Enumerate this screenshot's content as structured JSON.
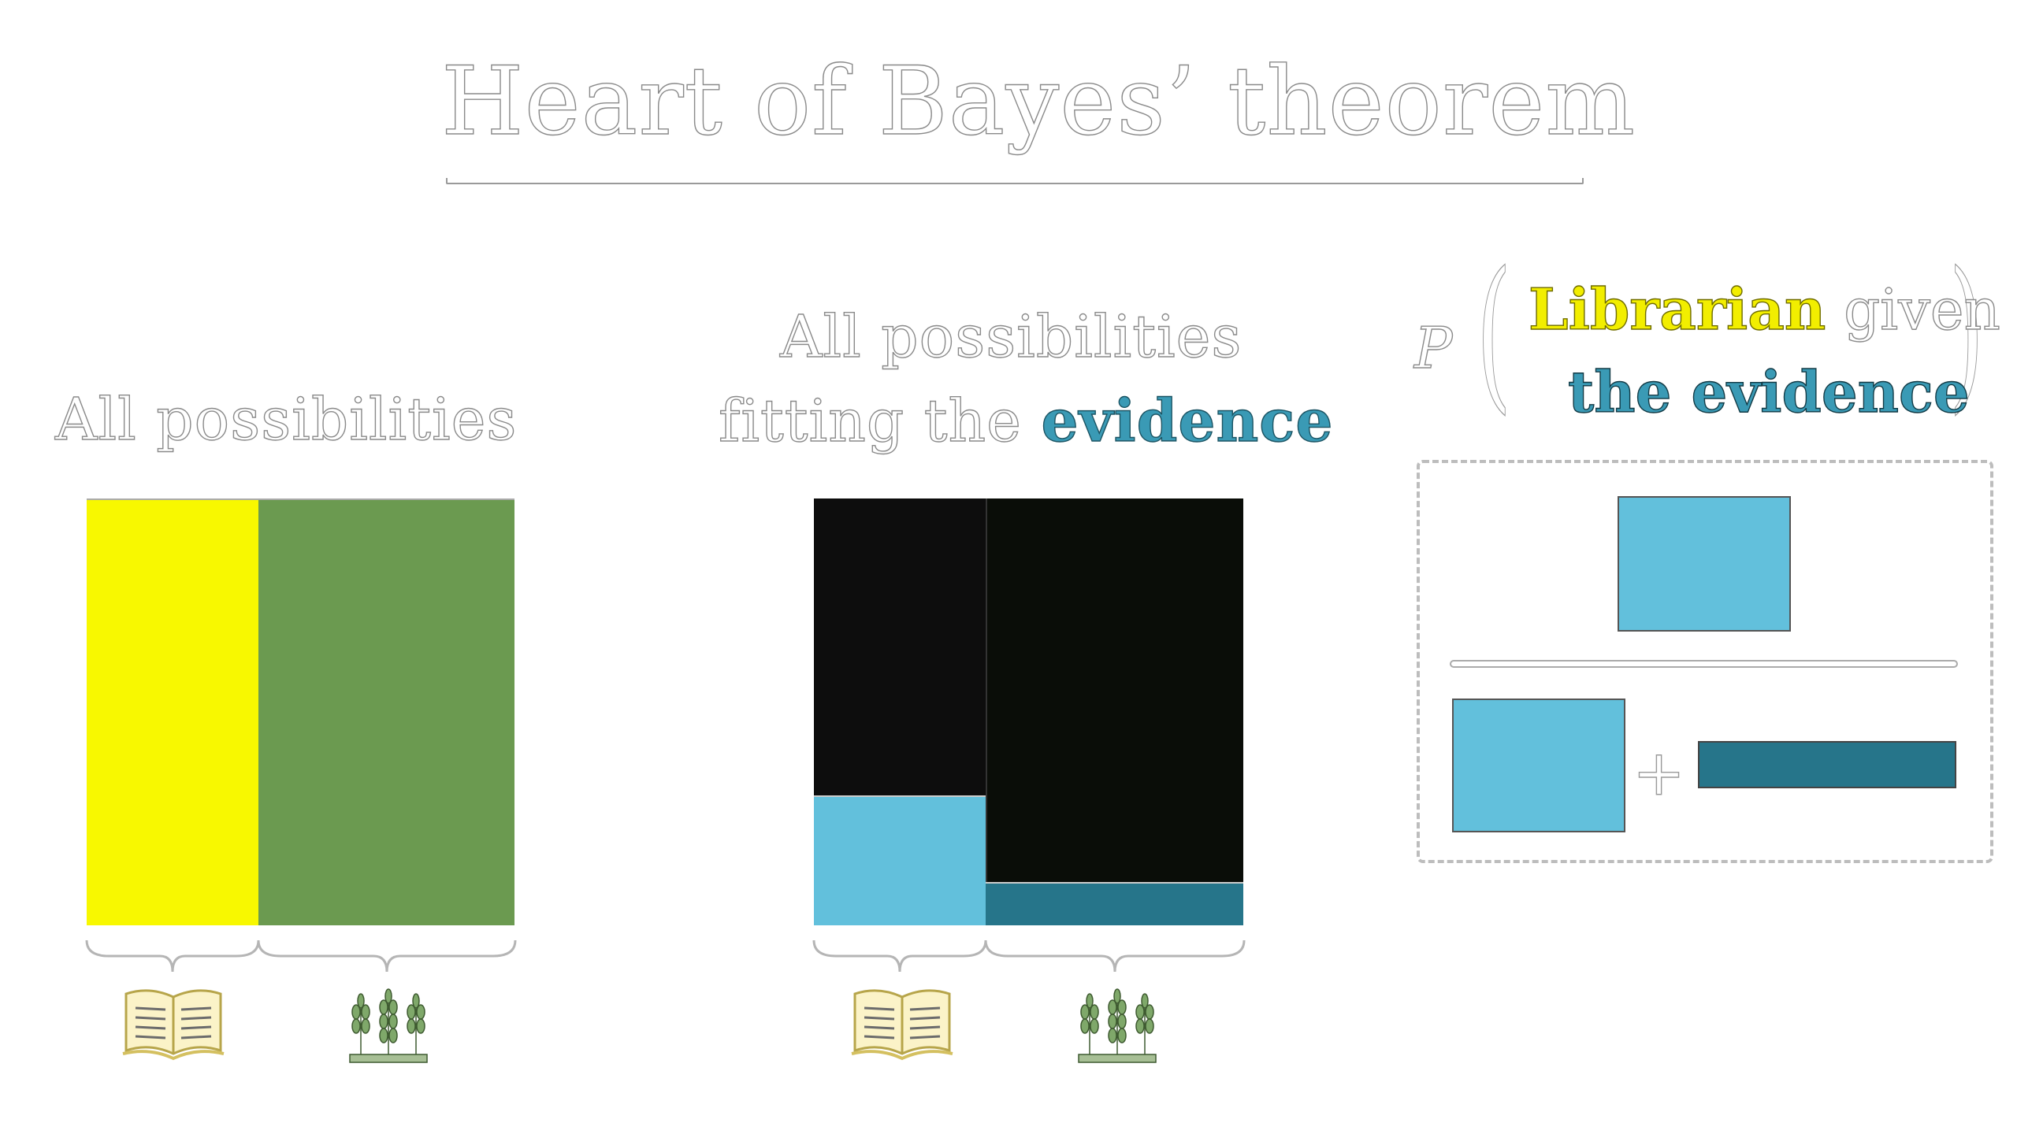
{
  "title": "Heart of Bayes’ theorem",
  "left_panel": {
    "heading": "All possibilities",
    "colors": {
      "librarian": "#f8f800",
      "farmer": "#6b9a50"
    }
  },
  "middle_panel": {
    "heading_line1": "All possibilities",
    "heading_line2_prefix": "fitting the ",
    "heading_line2_highlight": "evidence",
    "colors": {
      "background": "#0b0b0b",
      "librarian_evidence": "#62c0dc",
      "farmer_evidence": "#26758a"
    }
  },
  "formula": {
    "p_symbol": "P",
    "librarian_word": "Librarian",
    "given_word": " given",
    "evidence_phrase": "the evidence",
    "colors": {
      "librarian": "#f2ee00",
      "evidence": "#3a9ab5",
      "numerator": "#62c0dc",
      "farmer_term": "#26758a"
    },
    "plus_sign": "+"
  },
  "icons": {
    "librarian": "open-book-icon",
    "farmer": "wheat-crop-icon"
  }
}
